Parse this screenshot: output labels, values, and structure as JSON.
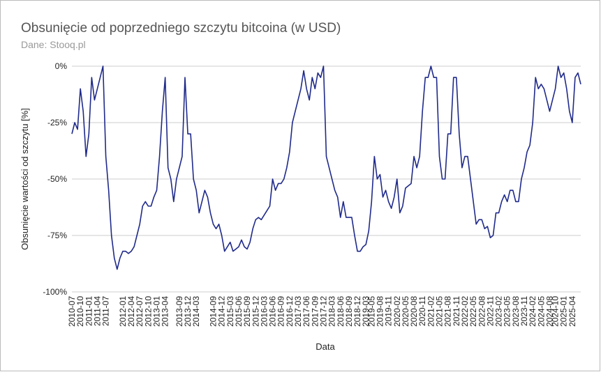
{
  "chart_data": {
    "type": "line",
    "title": "Obsunięcie od poprzedniego szczytu bitcoina (w USD)",
    "subtitle": "Dane: Stooq.pl",
    "x_label": "Data",
    "y_label": "Obsunięcie wartości od szczytu [%]",
    "x": [
      "2010-07",
      "2010-08",
      "2010-09",
      "2010-10",
      "2010-11",
      "2010-12",
      "2011-01",
      "2011-02",
      "2011-03",
      "2011-04",
      "2011-05",
      "2011-06",
      "2011-07",
      "2011-08",
      "2011-09",
      "2011-10",
      "2011-11",
      "2011-12",
      "2012-01",
      "2012-02",
      "2012-03",
      "2012-04",
      "2012-05",
      "2012-06",
      "2012-07",
      "2012-08",
      "2012-09",
      "2012-10",
      "2012-11",
      "2012-12",
      "2013-01",
      "2013-02",
      "2013-03",
      "2013-04",
      "2013-05",
      "2013-06",
      "2013-07",
      "2013-08",
      "2013-09",
      "2013-10",
      "2013-11",
      "2013-12",
      "2014-01",
      "2014-02",
      "2014-03",
      "2014-04",
      "2014-05",
      "2014-06",
      "2014-07",
      "2014-08",
      "2014-09",
      "2014-10",
      "2014-11",
      "2014-12",
      "2015-01",
      "2015-02",
      "2015-03",
      "2015-04",
      "2015-05",
      "2015-06",
      "2015-07",
      "2015-08",
      "2015-09",
      "2015-10",
      "2015-11",
      "2015-12",
      "2016-01",
      "2016-02",
      "2016-03",
      "2016-04",
      "2016-05",
      "2016-06",
      "2016-07",
      "2016-08",
      "2016-09",
      "2016-10",
      "2016-11",
      "2016-12",
      "2017-01",
      "2017-02",
      "2017-03",
      "2017-04",
      "2017-05",
      "2017-06",
      "2017-07",
      "2017-08",
      "2017-09",
      "2017-10",
      "2017-11",
      "2017-12",
      "2018-01",
      "2018-02",
      "2018-03",
      "2018-04",
      "2018-05",
      "2018-06",
      "2018-07",
      "2018-08",
      "2018-09",
      "2018-10",
      "2018-11",
      "2018-12",
      "2019-01",
      "2019-02",
      "2019-03",
      "2019-04",
      "2019-05",
      "2019-06",
      "2019-07",
      "2019-08",
      "2019-09",
      "2019-10",
      "2019-11",
      "2019-12",
      "2020-01",
      "2020-02",
      "2020-03",
      "2020-04",
      "2020-05",
      "2020-06",
      "2020-07",
      "2020-08",
      "2020-09",
      "2020-10",
      "2020-11",
      "2020-12",
      "2021-01",
      "2021-02",
      "2021-03",
      "2021-04",
      "2021-05",
      "2021-06",
      "2021-07",
      "2021-08",
      "2021-09",
      "2021-10",
      "2021-11",
      "2021-12",
      "2022-01",
      "2022-02",
      "2022-03",
      "2022-04",
      "2022-05",
      "2022-06",
      "2022-07",
      "2022-08",
      "2022-09",
      "2022-10",
      "2022-11",
      "2022-12",
      "2023-01",
      "2023-02",
      "2023-03",
      "2023-04",
      "2023-05",
      "2023-06",
      "2023-07",
      "2023-08",
      "2023-09",
      "2023-10",
      "2023-11",
      "2023-12",
      "2024-01",
      "2024-02",
      "2024-03",
      "2024-04",
      "2024-05",
      "2024-06",
      "2024-07",
      "2024-08",
      "2024-09",
      "2024-10",
      "2024-11",
      "2024-12",
      "2025-01",
      "2025-02",
      "2025-03",
      "2025-04",
      "2025-05",
      "2025-06",
      "2025-07"
    ],
    "series": [
      {
        "name": "Obsunięcie",
        "color": "#1f2a8a",
        "values": [
          -30,
          -25,
          -28,
          -10,
          -20,
          -40,
          -30,
          -5,
          -15,
          -10,
          -5,
          0,
          -40,
          -55,
          -75,
          -85,
          -90,
          -85,
          -82,
          -82,
          -83,
          -82,
          -80,
          -75,
          -70,
          -62,
          -60,
          -62,
          -62,
          -58,
          -55,
          -40,
          -20,
          -5,
          -45,
          -50,
          -60,
          -50,
          -45,
          -40,
          -5,
          -30,
          -30,
          -50,
          -55,
          -65,
          -60,
          -55,
          -58,
          -65,
          -70,
          -72,
          -70,
          -75,
          -82,
          -80,
          -78,
          -82,
          -81,
          -80,
          -77,
          -80,
          -81,
          -78,
          -72,
          -68,
          -67,
          -68,
          -66,
          -64,
          -62,
          -50,
          -55,
          -52,
          -52,
          -50,
          -45,
          -38,
          -25,
          -20,
          -15,
          -10,
          -2,
          -10,
          -15,
          -5,
          -10,
          -3,
          -5,
          0,
          -40,
          -45,
          -50,
          -55,
          -58,
          -67,
          -60,
          -67,
          -67,
          -67,
          -75,
          -82,
          -82,
          -80,
          -79,
          -73,
          -60,
          -40,
          -50,
          -48,
          -58,
          -55,
          -60,
          -63,
          -58,
          -50,
          -65,
          -62,
          -54,
          -53,
          -52,
          -40,
          -45,
          -40,
          -20,
          -5,
          -5,
          0,
          -5,
          -5,
          -40,
          -50,
          -50,
          -30,
          -30,
          -5,
          -5,
          -30,
          -45,
          -40,
          -40,
          -50,
          -60,
          -70,
          -68,
          -68,
          -72,
          -71,
          -76,
          -75,
          -65,
          -65,
          -60,
          -57,
          -60,
          -55,
          -55,
          -60,
          -60,
          -50,
          -45,
          -38,
          -35,
          -25,
          -5,
          -10,
          -8,
          -10,
          -15,
          -20,
          -15,
          -10,
          0,
          -5,
          -3,
          -10,
          -20,
          -25,
          -5,
          -3,
          -8
        ]
      }
    ],
    "xticks": [
      "2010-07",
      "2010-10",
      "2011-01",
      "2011-04",
      "2011-07",
      "2012-01",
      "2012-04",
      "2012-07",
      "2012-10",
      "2013-01",
      "2013-04",
      "2013-09",
      "2013-12",
      "2014-03",
      "2014-09",
      "2014-12",
      "2015-03",
      "2015-06",
      "2015-09",
      "2015-12",
      "2016-03",
      "2016-06",
      "2016-09",
      "2016-12",
      "2017-03",
      "2017-06",
      "2017-09",
      "2017-12",
      "2018-03",
      "2018-06",
      "2018-09",
      "2018-12",
      "2019-03",
      "2019-05",
      "2019-08",
      "2019-11",
      "2020-02",
      "2020-05",
      "2020-08",
      "2020-11",
      "2021-02",
      "2021-05",
      "2021-08",
      "2021-11",
      "2022-02",
      "2022-05",
      "2022-08",
      "2022-11",
      "2023-02",
      "2023-05",
      "2023-08",
      "2023-11",
      "2024-02",
      "2024-05",
      "2024-08",
      "2024-10",
      "2025-01",
      "2025-04"
    ],
    "ylim": [
      -100,
      0
    ],
    "yticks": [
      {
        "value": 0,
        "label": "0%"
      },
      {
        "value": -25,
        "label": "-25%"
      },
      {
        "value": -50,
        "label": "-50%"
      },
      {
        "value": -75,
        "label": "-75%"
      },
      {
        "value": -100,
        "label": "-100%"
      }
    ],
    "grid": true
  }
}
